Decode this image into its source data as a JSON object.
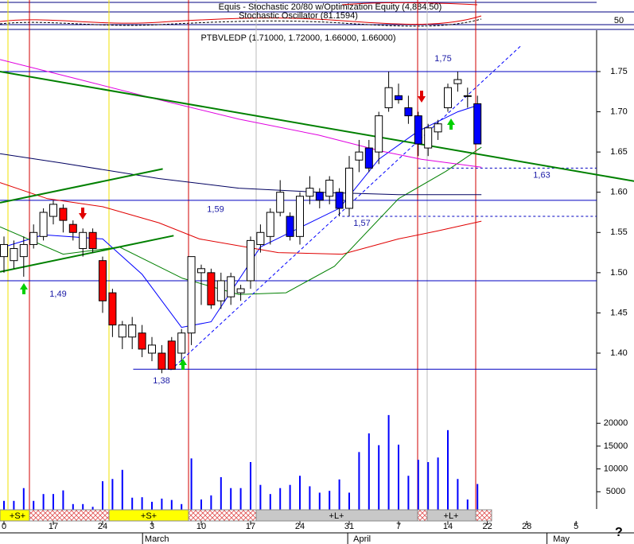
{
  "chart_data": {
    "type": "candlestick",
    "header": [
      "Equis - Stochastic 20/80 w/Optimization Equity (4,884.50)",
      "Stochastic Oscillator (81.1594)"
    ],
    "osc_ticks": [
      50
    ],
    "title": "PTBVLEDP (1.71000, 1.72000, 1.66000, 1.66000)",
    "open": [
      1.52,
      1.515,
      1.52,
      1.535,
      1.545,
      1.57,
      1.58,
      1.56,
      1.53,
      1.55,
      1.515,
      1.475,
      1.42,
      1.42,
      1.425,
      1.4,
      1.4,
      1.415,
      1.4,
      1.425,
      1.5,
      1.5,
      1.465,
      1.47,
      1.475,
      1.49,
      1.535,
      1.545,
      1.575,
      1.57,
      1.545,
      1.595,
      1.6,
      1.595,
      1.6,
      1.58,
      1.64,
      1.655,
      1.65,
      1.705,
      1.72,
      1.705,
      1.695,
      1.655,
      1.675,
      1.705,
      1.735,
      1.72,
      1.71
    ],
    "high": [
      1.545,
      1.54,
      1.545,
      1.56,
      1.58,
      1.59,
      1.585,
      1.565,
      1.555,
      1.555,
      1.52,
      1.48,
      1.44,
      1.445,
      1.435,
      1.42,
      1.41,
      1.42,
      1.43,
      1.52,
      1.51,
      1.505,
      1.5,
      1.5,
      1.485,
      1.545,
      1.56,
      1.58,
      1.615,
      1.575,
      1.6,
      1.62,
      1.605,
      1.62,
      1.605,
      1.645,
      1.665,
      1.665,
      1.7,
      1.75,
      1.735,
      1.72,
      1.7,
      1.685,
      1.69,
      1.735,
      1.75,
      1.73,
      1.72
    ],
    "low": [
      1.5,
      1.505,
      1.495,
      1.53,
      1.54,
      1.56,
      1.55,
      1.54,
      1.52,
      1.525,
      1.45,
      1.42,
      1.405,
      1.405,
      1.395,
      1.39,
      1.375,
      1.38,
      1.385,
      1.41,
      1.46,
      1.455,
      1.455,
      1.46,
      1.465,
      1.48,
      1.525,
      1.535,
      1.57,
      1.54,
      1.535,
      1.585,
      1.58,
      1.585,
      1.57,
      1.57,
      1.625,
      1.625,
      1.635,
      1.7,
      1.71,
      1.685,
      1.645,
      1.645,
      1.665,
      1.7,
      1.725,
      1.705,
      1.66
    ],
    "close": [
      1.535,
      1.53,
      1.535,
      1.55,
      1.575,
      1.585,
      1.565,
      1.55,
      1.55,
      1.53,
      1.465,
      1.435,
      1.435,
      1.435,
      1.405,
      1.41,
      1.38,
      1.38,
      1.425,
      1.52,
      1.505,
      1.46,
      1.49,
      1.495,
      1.48,
      1.54,
      1.55,
      1.575,
      1.6,
      1.545,
      1.595,
      1.605,
      1.59,
      1.615,
      1.58,
      1.63,
      1.65,
      1.63,
      1.695,
      1.73,
      1.715,
      1.695,
      1.66,
      1.68,
      1.685,
      1.73,
      1.74,
      1.72,
      1.66
    ],
    "colors": [
      "#ffffff",
      "#ffffff",
      "#ffffff",
      "#ffffff",
      "#ffffff",
      "#ffffff",
      "#ff0000",
      "#ff0000",
      "#ffffff",
      "#ff0000",
      "#ff0000",
      "#ff0000",
      "#ffffff",
      "#ffffff",
      "#ff0000",
      "#ffffff",
      "#ff0000",
      "#ff0000",
      "#ffffff",
      "#ffffff",
      "#ffffff",
      "#ff0000",
      "#ffffff",
      "#ffffff",
      "#ffffff",
      "#ffffff",
      "#ffffff",
      "#ffffff",
      "#ffffff",
      "#0000ff",
      "#ffffff",
      "#ffffff",
      "#0000ff",
      "#ffffff",
      "#0000ff",
      "#ffffff",
      "#ffffff",
      "#0000ff",
      "#ffffff",
      "#ffffff",
      "#0000ff",
      "#0000ff",
      "#0000ff",
      "#ffffff",
      "#ffffff",
      "#ffffff",
      "#ffffff",
      "#ffffff",
      "#0000ff"
    ],
    "volume": [
      3000,
      3000,
      5800,
      3000,
      4500,
      4500,
      5300,
      2300,
      2300,
      1700,
      7300,
      7800,
      9800,
      3700,
      3800,
      2800,
      3500,
      3200,
      2300,
      12300,
      3300,
      4200,
      8200,
      5800,
      5800,
      11500,
      6500,
      4500,
      5800,
      6500,
      8500,
      6200,
      4800,
      5200,
      7700,
      4800,
      13700,
      17800,
      15200,
      21800,
      15300,
      8500,
      12000,
      11500,
      12500,
      18500,
      7800,
      3300,
      6700
    ],
    "volume_color": "#0000ff",
    "ylim": [
      1.34,
      1.8
    ],
    "yticks": [
      {
        "value": 1.4,
        "label": "1.40"
      },
      1.45,
      {
        "value": 1.5,
        "label": "1.50"
      },
      1.55,
      {
        "value": 1.6,
        "label": "1.60"
      },
      1.65,
      {
        "value": 1.7,
        "label": "1.70"
      },
      1.75
    ],
    "vlim": [
      0,
      23000
    ],
    "vticks": [
      5000,
      10000,
      15000,
      20000
    ],
    "xticks": [
      {
        "value": 0,
        "label": "0"
      },
      {
        "value": 5,
        "label": "17"
      },
      {
        "value": 10,
        "label": "24"
      },
      {
        "value": 15,
        "label": "3"
      },
      {
        "value": 20,
        "label": "10"
      },
      {
        "value": 25,
        "label": "17"
      },
      {
        "value": 30,
        "label": "24"
      },
      {
        "value": 35,
        "label": "31"
      },
      {
        "value": 40,
        "label": "7"
      },
      {
        "value": 45,
        "label": "14"
      },
      {
        "value": 49,
        "label": "22"
      },
      {
        "value": 53,
        "label": "28"
      },
      {
        "value": 58,
        "label": "5"
      }
    ],
    "months": [
      {
        "value": 15.5,
        "label": "March"
      },
      {
        "value": 36.3,
        "label": "April"
      },
      {
        "value": 56.5,
        "label": "May"
      }
    ],
    "averages": [
      {
        "color": "#0000ff",
        "x": [
          0,
          4,
          10,
          14,
          18,
          21,
          26,
          34,
          38,
          42,
          46,
          48
        ],
        "values": [
          1.532,
          1.547,
          1.542,
          1.498,
          1.432,
          1.439,
          1.532,
          1.58,
          1.641,
          1.676,
          1.7,
          1.708
        ]
      },
      {
        "color": "#e00000",
        "x": [
          -0.4,
          4.4,
          10,
          15.7,
          19.8,
          27.8,
          34.3,
          40,
          44,
          48.4
        ],
        "values": [
          1.612,
          1.592,
          1.582,
          1.562,
          1.542,
          1.525,
          1.523,
          1.542,
          1.552,
          1.564
        ]
      },
      {
        "color": "#008000",
        "x": [
          -0.4,
          6,
          11.7,
          18.1,
          23.8,
          28.6,
          33.5,
          40,
          44.8,
          48.4
        ],
        "values": [
          1.557,
          1.523,
          1.532,
          1.493,
          1.473,
          1.475,
          1.508,
          1.592,
          1.626,
          1.656
        ]
      },
      {
        "color": "#e000e0",
        "x": [
          -0.4,
          7.7,
          15.7,
          23.8,
          31.9,
          38.3,
          42.3,
          48.4
        ],
        "values": [
          1.765,
          1.74,
          1.715,
          1.691,
          1.671,
          1.651,
          1.641,
          1.631
        ]
      },
      {
        "color": "#000060",
        "x": [
          -0.4,
          6,
          15.7,
          23.8,
          31.9,
          40,
          48.4
        ],
        "values": [
          1.648,
          1.636,
          1.617,
          1.605,
          1.6,
          1.597,
          1.597
        ]
      }
    ],
    "trendlines": [
      {
        "color": "#008000",
        "x": [
          -0.4,
          63.9
        ],
        "values": [
          1.75,
          1.6137
        ]
      },
      {
        "color": "#008000",
        "x": [
          -0.4,
          16.1
        ],
        "values": [
          1.587,
          1.629
        ]
      },
      {
        "color": "#008000",
        "x": [
          -0.4,
          17.2
        ],
        "values": [
          1.501,
          1.546
        ]
      },
      {
        "color": "#0000ff",
        "dashed": true,
        "x": [
          16.9,
          52.4
        ],
        "values": [
          1.379,
          1.782
        ]
      }
    ],
    "levels": [
      {
        "value": 1.75,
        "label": "1,75",
        "from": -0.4,
        "dashed": false
      },
      {
        "value": 1.49,
        "label": "1,49",
        "from": -0.4,
        "dashed": false
      },
      {
        "value": 1.59,
        "label": "1,59",
        "from": -0.4,
        "dashed": false
      },
      {
        "value": 1.38,
        "label": "1,38",
        "from": 13.1,
        "dashed": false
      },
      {
        "value": 1.63,
        "label": "1,63",
        "from": 42,
        "dashed": true
      },
      {
        "value": 1.57,
        "label": "1,57",
        "from": 34.3,
        "dashed": true
      }
    ],
    "signals": [
      "+S+",
      "+S+",
      "+L+",
      "+L+"
    ],
    "help": "?"
  }
}
